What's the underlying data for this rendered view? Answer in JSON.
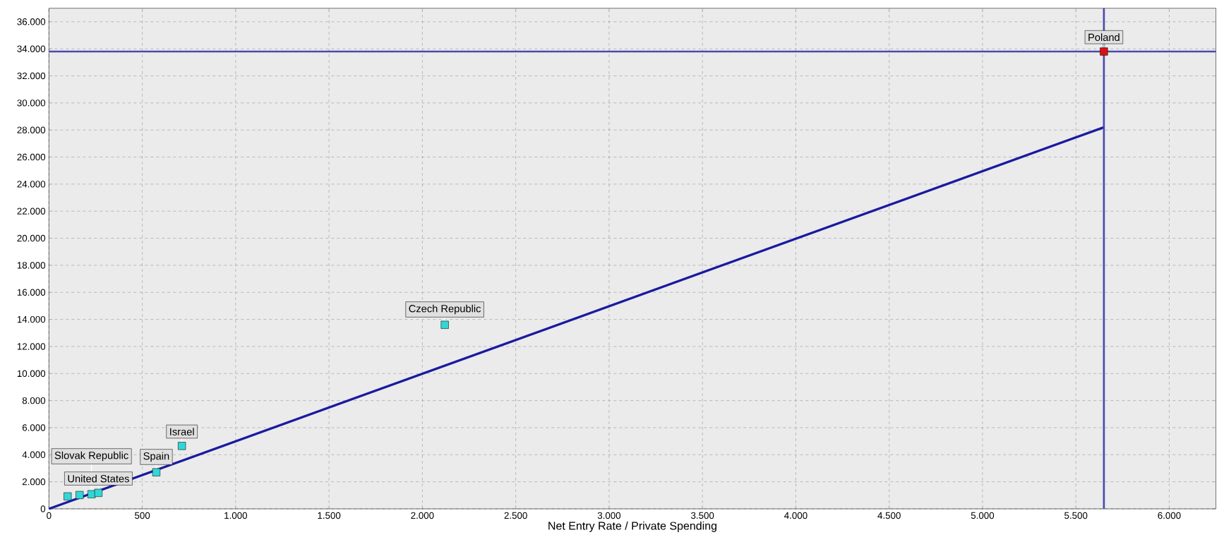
{
  "chart_data": {
    "type": "scatter",
    "xlabel": "Net Entry Rate / Private Spending",
    "xlim": [
      0,
      6250
    ],
    "ylim": [
      0,
      37000
    ],
    "xticks": [
      0,
      500,
      {
        "value": 1000,
        "label": "1.000"
      },
      {
        "value": 1500,
        "label": "1.500"
      },
      {
        "value": 2000,
        "label": "2.000"
      },
      {
        "value": 2500,
        "label": "2.500"
      },
      {
        "value": 3000,
        "label": "3.000"
      },
      {
        "value": 3500,
        "label": "3.500"
      },
      {
        "value": 4000,
        "label": "4.000"
      },
      {
        "value": 4500,
        "label": "4.500"
      },
      {
        "value": 5000,
        "label": "5.000"
      },
      {
        "value": 5500,
        "label": "5.500"
      },
      {
        "value": 6000,
        "label": "6.000"
      }
    ],
    "yticks": [
      0,
      {
        "value": 2000,
        "label": "2.000"
      },
      {
        "value": 4000,
        "label": "4.000"
      },
      {
        "value": 6000,
        "label": "6.000"
      },
      {
        "value": 8000,
        "label": "8.000"
      },
      {
        "value": 10000,
        "label": "10.000"
      },
      {
        "value": 12000,
        "label": "12.000"
      },
      {
        "value": 14000,
        "label": "14.000"
      },
      {
        "value": 16000,
        "label": "16.000"
      },
      {
        "value": 18000,
        "label": "18.000"
      },
      {
        "value": 20000,
        "label": "20.000"
      },
      {
        "value": 22000,
        "label": "22.000"
      },
      {
        "value": 24000,
        "label": "24.000"
      },
      {
        "value": 26000,
        "label": "26.000"
      },
      {
        "value": 28000,
        "label": "28.000"
      },
      {
        "value": 30000,
        "label": "30.000"
      },
      {
        "value": 32000,
        "label": "32.000"
      },
      {
        "value": 34000,
        "label": "34.000"
      },
      {
        "value": 36000,
        "label": "36.000"
      }
    ],
    "grid": true,
    "series": [
      {
        "marker": "square",
        "x": [
          100,
          164,
          228,
          265,
          575,
          712,
          2120,
          5650
        ],
        "values": [
          920,
          1020,
          1080,
          1180,
          2700,
          4650,
          13600,
          33800
        ],
        "colors": [
          "#33d6d6",
          "#33d6d6",
          "#33d6d6",
          "#33d6d6",
          "#33d6d6",
          "#33d6d6",
          "#33d6d6",
          "#e01010"
        ]
      },
      {
        "type": "line",
        "x": [
          0,
          5650
        ],
        "values": [
          0,
          28200
        ],
        "color": "#1a1aa0"
      }
    ],
    "ref_lines": [
      {
        "axis": "y",
        "value": 33800,
        "color": "#4a4ab0"
      },
      {
        "axis": "x",
        "value": 5650,
        "color": "#4a4ab0"
      }
    ],
    "annotations": [
      {
        "text": "Poland",
        "x": 5650,
        "y": 33800
      },
      {
        "text": "Czech Republic",
        "x": 2120,
        "y": 13600
      },
      {
        "text": "Israel",
        "x": 712,
        "y": 4650
      },
      {
        "text": "Spain",
        "x": 575,
        "y": 2700
      },
      {
        "text": "Slovak Republic",
        "x": 228,
        "y": 1080
      },
      {
        "text": "United States",
        "x": 265,
        "y": 1180
      }
    ]
  }
}
